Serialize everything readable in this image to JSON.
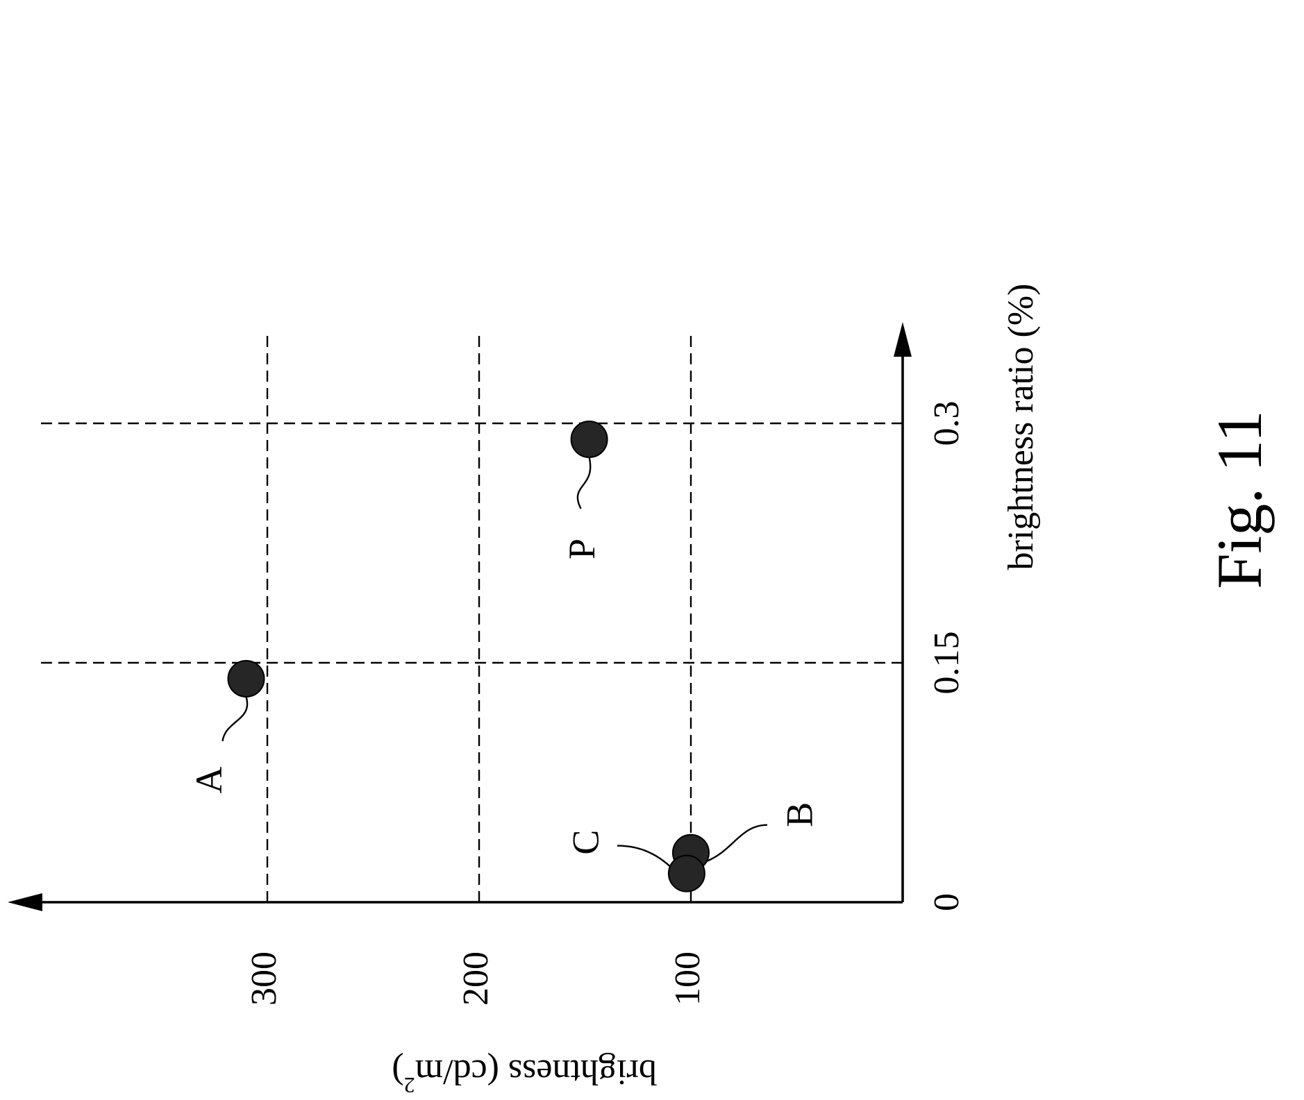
{
  "figure": {
    "caption": "Fig. 11"
  },
  "chart_data": {
    "type": "scatter",
    "title": "",
    "xlabel": "brightness ratio (%)",
    "ylabel": "brightness (cd/m2)",
    "ylabel_main": "brightness (cd/m",
    "ylabel_sup": "2",
    "ylabel_close": ")",
    "xlim": [
      0,
      0.36
    ],
    "ylim": [
      0,
      420
    ],
    "x_ticks": [
      {
        "value": 0,
        "label": "0"
      },
      {
        "value": 0.15,
        "label": "0.15"
      },
      {
        "value": 0.3,
        "label": "0.3"
      }
    ],
    "y_ticks": [
      {
        "value": 100,
        "label": "100"
      },
      {
        "value": 200,
        "label": "200"
      },
      {
        "value": 300,
        "label": "300"
      }
    ],
    "x_gridlines": [
      0.15,
      0.3
    ],
    "y_gridlines": [
      100,
      200,
      300
    ],
    "grid": "dashed",
    "orientation": "rotated 90 degrees counter-clockwise",
    "points": [
      {
        "label": "A",
        "x": 0.14,
        "y": 310
      },
      {
        "label": "P",
        "x": 0.29,
        "y": 148
      },
      {
        "label": "B",
        "x": 0.031,
        "y": 100
      },
      {
        "label": "C",
        "x": 0.018,
        "y": 102
      }
    ],
    "marker_color": "#262626"
  }
}
